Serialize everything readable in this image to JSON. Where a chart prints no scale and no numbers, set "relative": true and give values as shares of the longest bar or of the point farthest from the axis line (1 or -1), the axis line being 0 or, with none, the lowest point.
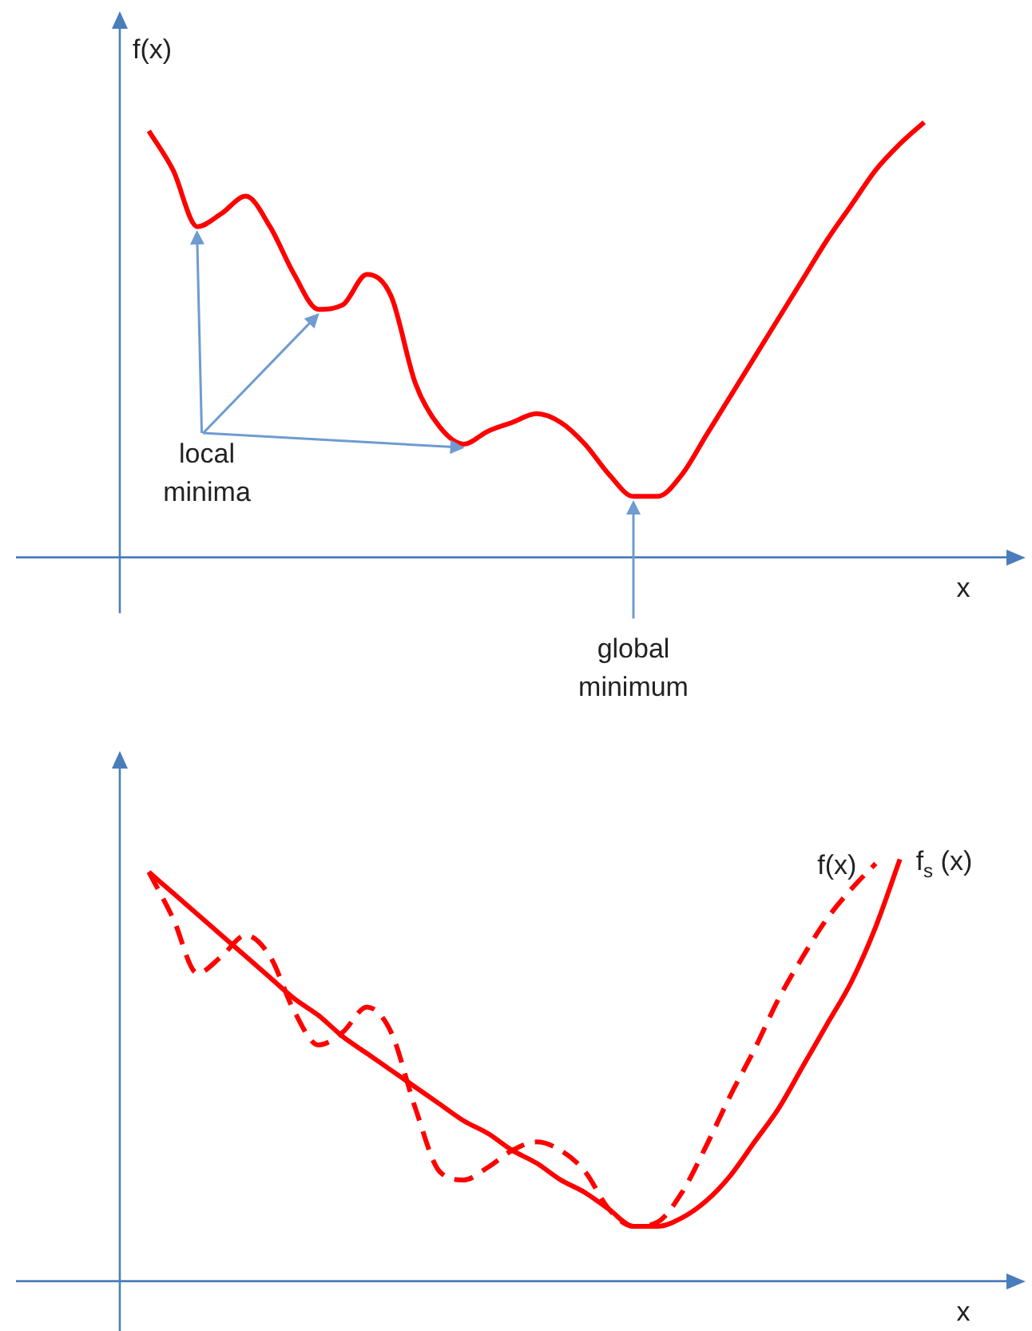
{
  "chart_data": [
    {
      "type": "line",
      "ylabel": "f(x)",
      "xlabel": "x",
      "relative": true,
      "grid": false,
      "legend": false,
      "marker": "none",
      "categories": [
        null,
        null,
        null,
        null,
        null,
        null,
        null,
        null,
        null,
        null,
        null,
        null,
        null,
        null,
        null,
        null,
        null,
        null,
        null,
        null,
        null,
        null,
        null,
        null,
        null,
        null,
        null,
        null,
        null,
        null,
        null,
        null,
        null,
        null,
        null,
        null,
        null
      ],
      "series": [
        {
          "color": "#ff0000",
          "line_style": "solid",
          "values": [
            null,
            0.98,
            0.89,
            0.76,
            0.79,
            0.83,
            0.76,
            0.65,
            0.57,
            0.58,
            0.65,
            0.6,
            0.4,
            0.3,
            0.26,
            0.29,
            0.31,
            0.33,
            0.31,
            0.26,
            0.19,
            0.14,
            0.14,
            0.19,
            0.28,
            0.37,
            0.46,
            0.55,
            0.64,
            0.73,
            0.81,
            0.89,
            0.95,
            1,
            null,
            null,
            null
          ]
        }
      ],
      "annotations": [
        "local minima",
        "global minimum"
      ]
    },
    {
      "type": "line",
      "xlabel": "x",
      "relative": true,
      "grid": false,
      "legend": false,
      "marker": "none",
      "categories": [
        null,
        null,
        null,
        null,
        null,
        null,
        null,
        null,
        null,
        null,
        null,
        null,
        null,
        null,
        null,
        null,
        null,
        null,
        null,
        null,
        null,
        null,
        null,
        null,
        null,
        null,
        null,
        null,
        null,
        null,
        null,
        null,
        null,
        null,
        null,
        null,
        null
      ],
      "series": [
        {
          "name": "f(x)",
          "color": "#ff0000",
          "line_style": "dashed",
          "values": [
            null,
            0.97,
            0.86,
            0.73,
            0.77,
            0.82,
            0.77,
            0.64,
            0.56,
            0.59,
            0.65,
            0.59,
            0.41,
            0.26,
            0.24,
            0.27,
            0.31,
            0.33,
            0.31,
            0.26,
            0.17,
            0.13,
            0.14,
            0.21,
            0.32,
            0.44,
            0.55,
            0.67,
            0.77,
            0.86,
            0.93,
            0.99,
            null,
            null,
            null,
            null,
            null
          ]
        },
        {
          "name": "f$_{s}$ (x)",
          "color": "#ff0000",
          "line_style": "solid",
          "values": [
            null,
            0.97,
            0.92,
            0.87,
            0.82,
            0.77,
            0.72,
            0.67,
            0.63,
            0.58,
            0.54,
            0.5,
            0.46,
            0.42,
            0.38,
            0.35,
            0.31,
            0.28,
            0.24,
            0.21,
            0.17,
            0.13,
            0.13,
            0.15,
            0.19,
            0.25,
            0.33,
            0.41,
            0.51,
            0.61,
            0.71,
            0.84,
            1,
            null,
            null,
            null,
            null
          ]
        }
      ]
    }
  ]
}
